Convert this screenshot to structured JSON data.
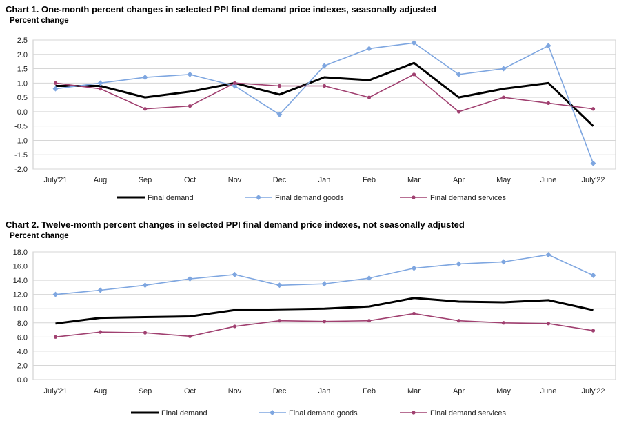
{
  "charts": [
    {
      "title": "Chart 1. One-month percent changes in selected PPI final demand price indexes, seasonally adjusted",
      "ylabel": "Percent change"
    },
    {
      "title": "Chart 2. Twelve-month percent changes in selected PPI final demand price indexes, not seasonally adjusted",
      "ylabel": "Percent change"
    }
  ],
  "chart_data": [
    {
      "type": "line",
      "title": "Chart 1. One-month percent changes in selected PPI final demand price indexes, seasonally adjusted",
      "ylabel": "Percent change",
      "categories": [
        "July'21",
        "Aug",
        "Sep",
        "Oct",
        "Nov",
        "Dec",
        "Jan",
        "Feb",
        "Mar",
        "Apr",
        "May",
        "June",
        "July'22"
      ],
      "ylim": [
        -2.0,
        2.5
      ],
      "yticks": [
        "2.5",
        "2.0",
        "1.5",
        "1.0",
        "0.5",
        "0.0",
        "-0.5",
        "-1.0",
        "-1.5",
        "-2.0"
      ],
      "grid": true,
      "legend": "bottom",
      "series": [
        {
          "name": "Final demand",
          "color": "#000000",
          "marker": "none",
          "values": [
            0.9,
            0.9,
            0.5,
            0.7,
            1.0,
            0.6,
            1.2,
            1.1,
            1.7,
            0.5,
            0.8,
            1.0,
            -0.5
          ]
        },
        {
          "name": "Final demand goods",
          "color": "#7ea6e0",
          "marker": "diamond",
          "values": [
            0.8,
            1.0,
            1.2,
            1.3,
            0.9,
            -0.1,
            1.6,
            2.2,
            2.4,
            1.3,
            1.5,
            2.3,
            -1.8
          ]
        },
        {
          "name": "Final demand services",
          "color": "#a04070",
          "marker": "star",
          "values": [
            1.0,
            0.8,
            0.1,
            0.2,
            1.0,
            0.9,
            0.9,
            0.5,
            1.3,
            0.0,
            0.5,
            0.3,
            0.1
          ]
        }
      ]
    },
    {
      "type": "line",
      "title": "Chart 2. Twelve-month percent changes in selected PPI final demand price indexes, not seasonally adjusted",
      "ylabel": "Percent change",
      "categories": [
        "July'21",
        "Aug",
        "Sep",
        "Oct",
        "Nov",
        "Dec",
        "Jan",
        "Feb",
        "Mar",
        "Apr",
        "May",
        "June",
        "July'22"
      ],
      "ylim": [
        0.0,
        18.0
      ],
      "yticks": [
        "18.0",
        "16.0",
        "14.0",
        "12.0",
        "10.0",
        "8.0",
        "6.0",
        "4.0",
        "2.0",
        "0.0"
      ],
      "grid": true,
      "legend": "bottom",
      "series": [
        {
          "name": "Final demand",
          "color": "#000000",
          "marker": "none",
          "values": [
            7.9,
            8.7,
            8.8,
            8.9,
            9.8,
            9.9,
            10.0,
            10.3,
            11.5,
            11.0,
            10.9,
            11.2,
            9.8
          ]
        },
        {
          "name": "Final demand goods",
          "color": "#7ea6e0",
          "marker": "diamond",
          "values": [
            12.0,
            12.6,
            13.3,
            14.2,
            14.8,
            13.3,
            13.5,
            14.3,
            15.7,
            16.3,
            16.6,
            17.6,
            14.7
          ]
        },
        {
          "name": "Final demand services",
          "color": "#a04070",
          "marker": "star",
          "values": [
            6.0,
            6.7,
            6.6,
            6.1,
            7.5,
            8.3,
            8.2,
            8.3,
            9.3,
            8.3,
            8.0,
            7.9,
            6.9
          ]
        }
      ]
    }
  ]
}
